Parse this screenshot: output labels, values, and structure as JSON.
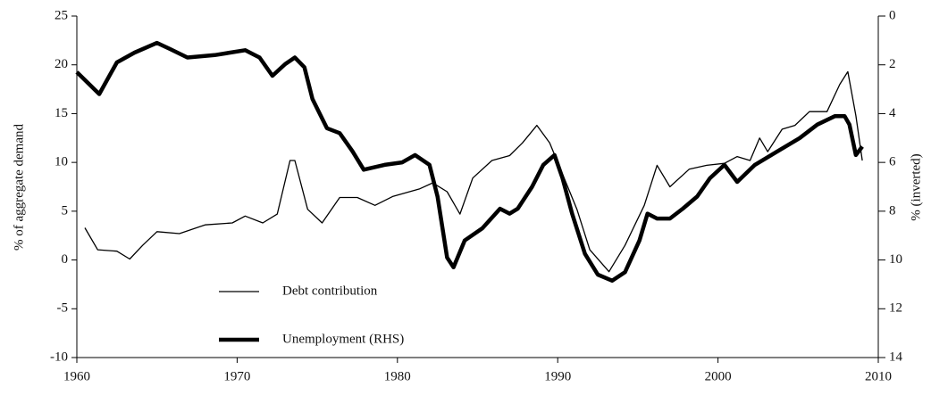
{
  "chart_data": {
    "type": "line",
    "ylabel": "% of aggregate demand",
    "y2label": "% (inverted)",
    "xlim": [
      1960,
      2010
    ],
    "xticks": [
      1960,
      1970,
      1980,
      1990,
      2000,
      2010
    ],
    "ylim": [
      -10,
      25
    ],
    "yticks": [
      -10,
      -5,
      0,
      5,
      10,
      15,
      20,
      25
    ],
    "y2lim": [
      14,
      0
    ],
    "y2ticks": [
      0,
      2,
      4,
      6,
      8,
      10,
      12,
      14
    ],
    "series": [
      {
        "name": "Debt contribution",
        "color": "#000000",
        "width": 1.3,
        "x": [
          1960.5,
          1961.3,
          1962.5,
          1963.3,
          1964.1,
          1965,
          1966.4,
          1968,
          1969.7,
          1970.5,
          1971.6,
          1972.5,
          1973.3,
          1973.6,
          1974.4,
          1975.3,
          1976.4,
          1977.5,
          1978.6,
          1979.7,
          1981.4,
          1982.2,
          1983.1,
          1983.9,
          1984.7,
          1985.9,
          1987,
          1987.8,
          1988.7,
          1989.5,
          1990.3,
          1991.2,
          1992,
          1993.2,
          1994.2,
          1995.4,
          1996.2,
          1997,
          1998.2,
          1999.3,
          2000.4,
          2001.2,
          2002,
          2002.6,
          2003.1,
          2004,
          2004.8,
          2005.7,
          2006.8,
          2007.6,
          2008.1,
          2008.6,
          2009
        ],
        "values": [
          3.3,
          1.05,
          0.9,
          0.1,
          1.5,
          2.9,
          2.7,
          3.6,
          3.8,
          4.5,
          3.8,
          4.7,
          10.2,
          10.2,
          5.2,
          3.8,
          6.4,
          6.4,
          5.6,
          6.5,
          7.3,
          7.9,
          7.0,
          4.7,
          8.4,
          10.2,
          10.7,
          12.0,
          13.8,
          12.0,
          8.8,
          5.2,
          1.05,
          -1.2,
          1.5,
          5.6,
          9.7,
          7.5,
          9.3,
          9.7,
          9.9,
          10.6,
          10.2,
          12.5,
          11.1,
          13.4,
          13.8,
          15.2,
          15.2,
          18.0,
          19.3,
          14.8,
          10.2
        ]
      },
      {
        "name": "Unemployment (RHS)",
        "color": "#000000",
        "width": 4.5,
        "axis": "y2",
        "x": [
          1960,
          1961.4,
          1962.5,
          1963.6,
          1965,
          1965.8,
          1966.9,
          1968.6,
          1970.5,
          1971.4,
          1972.2,
          1973,
          1973.6,
          1974.2,
          1974.7,
          1975.6,
          1976.4,
          1977.2,
          1977.9,
          1979.2,
          1980.3,
          1981.1,
          1982,
          1982.5,
          1983.1,
          1983.5,
          1984.2,
          1985.3,
          1986.4,
          1987,
          1987.5,
          1988.4,
          1989.1,
          1989.8,
          1990.3,
          1990.9,
          1991.7,
          1992.5,
          1993.4,
          1994.2,
          1995.1,
          1995.6,
          1996.2,
          1997,
          1997.8,
          1998.7,
          1999.5,
          2000.4,
          2001.2,
          2002.3,
          2003.7,
          2005.1,
          2006.2,
          2007.3,
          2007.9,
          2008.2,
          2008.6,
          2009
        ],
        "values": [
          2.3,
          3.2,
          1.9,
          1.5,
          1.1,
          1.35,
          1.7,
          1.6,
          1.4,
          1.7,
          2.45,
          1.97,
          1.7,
          2.1,
          3.4,
          4.6,
          4.8,
          5.55,
          6.3,
          6.1,
          6.0,
          5.7,
          6.1,
          7.4,
          9.9,
          10.3,
          9.2,
          8.7,
          7.9,
          8.1,
          7.9,
          7.0,
          6.1,
          5.7,
          6.65,
          8.1,
          9.75,
          10.6,
          10.85,
          10.5,
          9.2,
          8.1,
          8.3,
          8.3,
          7.9,
          7.4,
          6.65,
          6.1,
          6.8,
          6.1,
          5.55,
          5.0,
          4.45,
          4.1,
          4.1,
          4.45,
          5.7,
          5.35
        ]
      }
    ]
  }
}
